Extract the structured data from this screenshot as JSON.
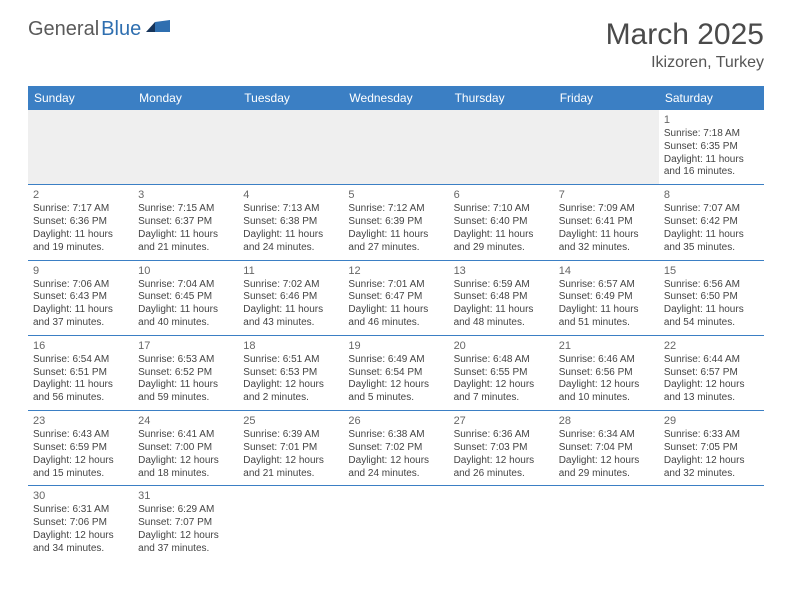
{
  "logo": {
    "part1": "General",
    "part2": "Blue"
  },
  "title": "March 2025",
  "location": "Ikizoren, Turkey",
  "colors": {
    "header_bg": "#3b7fc4",
    "header_text": "#ffffff",
    "border": "#3b7fc4",
    "daynum": "#666666",
    "body_text": "#444444",
    "blank_bg": "#efefef",
    "logo_gray": "#5a5a5a",
    "logo_blue": "#2f6fb0"
  },
  "weekdays": [
    "Sunday",
    "Monday",
    "Tuesday",
    "Wednesday",
    "Thursday",
    "Friday",
    "Saturday"
  ],
  "weeks": [
    [
      null,
      null,
      null,
      null,
      null,
      null,
      {
        "n": "1",
        "sr": "Sunrise: 7:18 AM",
        "ss": "Sunset: 6:35 PM",
        "dl1": "Daylight: 11 hours",
        "dl2": "and 16 minutes."
      }
    ],
    [
      {
        "n": "2",
        "sr": "Sunrise: 7:17 AM",
        "ss": "Sunset: 6:36 PM",
        "dl1": "Daylight: 11 hours",
        "dl2": "and 19 minutes."
      },
      {
        "n": "3",
        "sr": "Sunrise: 7:15 AM",
        "ss": "Sunset: 6:37 PM",
        "dl1": "Daylight: 11 hours",
        "dl2": "and 21 minutes."
      },
      {
        "n": "4",
        "sr": "Sunrise: 7:13 AM",
        "ss": "Sunset: 6:38 PM",
        "dl1": "Daylight: 11 hours",
        "dl2": "and 24 minutes."
      },
      {
        "n": "5",
        "sr": "Sunrise: 7:12 AM",
        "ss": "Sunset: 6:39 PM",
        "dl1": "Daylight: 11 hours",
        "dl2": "and 27 minutes."
      },
      {
        "n": "6",
        "sr": "Sunrise: 7:10 AM",
        "ss": "Sunset: 6:40 PM",
        "dl1": "Daylight: 11 hours",
        "dl2": "and 29 minutes."
      },
      {
        "n": "7",
        "sr": "Sunrise: 7:09 AM",
        "ss": "Sunset: 6:41 PM",
        "dl1": "Daylight: 11 hours",
        "dl2": "and 32 minutes."
      },
      {
        "n": "8",
        "sr": "Sunrise: 7:07 AM",
        "ss": "Sunset: 6:42 PM",
        "dl1": "Daylight: 11 hours",
        "dl2": "and 35 minutes."
      }
    ],
    [
      {
        "n": "9",
        "sr": "Sunrise: 7:06 AM",
        "ss": "Sunset: 6:43 PM",
        "dl1": "Daylight: 11 hours",
        "dl2": "and 37 minutes."
      },
      {
        "n": "10",
        "sr": "Sunrise: 7:04 AM",
        "ss": "Sunset: 6:45 PM",
        "dl1": "Daylight: 11 hours",
        "dl2": "and 40 minutes."
      },
      {
        "n": "11",
        "sr": "Sunrise: 7:02 AM",
        "ss": "Sunset: 6:46 PM",
        "dl1": "Daylight: 11 hours",
        "dl2": "and 43 minutes."
      },
      {
        "n": "12",
        "sr": "Sunrise: 7:01 AM",
        "ss": "Sunset: 6:47 PM",
        "dl1": "Daylight: 11 hours",
        "dl2": "and 46 minutes."
      },
      {
        "n": "13",
        "sr": "Sunrise: 6:59 AM",
        "ss": "Sunset: 6:48 PM",
        "dl1": "Daylight: 11 hours",
        "dl2": "and 48 minutes."
      },
      {
        "n": "14",
        "sr": "Sunrise: 6:57 AM",
        "ss": "Sunset: 6:49 PM",
        "dl1": "Daylight: 11 hours",
        "dl2": "and 51 minutes."
      },
      {
        "n": "15",
        "sr": "Sunrise: 6:56 AM",
        "ss": "Sunset: 6:50 PM",
        "dl1": "Daylight: 11 hours",
        "dl2": "and 54 minutes."
      }
    ],
    [
      {
        "n": "16",
        "sr": "Sunrise: 6:54 AM",
        "ss": "Sunset: 6:51 PM",
        "dl1": "Daylight: 11 hours",
        "dl2": "and 56 minutes."
      },
      {
        "n": "17",
        "sr": "Sunrise: 6:53 AM",
        "ss": "Sunset: 6:52 PM",
        "dl1": "Daylight: 11 hours",
        "dl2": "and 59 minutes."
      },
      {
        "n": "18",
        "sr": "Sunrise: 6:51 AM",
        "ss": "Sunset: 6:53 PM",
        "dl1": "Daylight: 12 hours",
        "dl2": "and 2 minutes."
      },
      {
        "n": "19",
        "sr": "Sunrise: 6:49 AM",
        "ss": "Sunset: 6:54 PM",
        "dl1": "Daylight: 12 hours",
        "dl2": "and 5 minutes."
      },
      {
        "n": "20",
        "sr": "Sunrise: 6:48 AM",
        "ss": "Sunset: 6:55 PM",
        "dl1": "Daylight: 12 hours",
        "dl2": "and 7 minutes."
      },
      {
        "n": "21",
        "sr": "Sunrise: 6:46 AM",
        "ss": "Sunset: 6:56 PM",
        "dl1": "Daylight: 12 hours",
        "dl2": "and 10 minutes."
      },
      {
        "n": "22",
        "sr": "Sunrise: 6:44 AM",
        "ss": "Sunset: 6:57 PM",
        "dl1": "Daylight: 12 hours",
        "dl2": "and 13 minutes."
      }
    ],
    [
      {
        "n": "23",
        "sr": "Sunrise: 6:43 AM",
        "ss": "Sunset: 6:59 PM",
        "dl1": "Daylight: 12 hours",
        "dl2": "and 15 minutes."
      },
      {
        "n": "24",
        "sr": "Sunrise: 6:41 AM",
        "ss": "Sunset: 7:00 PM",
        "dl1": "Daylight: 12 hours",
        "dl2": "and 18 minutes."
      },
      {
        "n": "25",
        "sr": "Sunrise: 6:39 AM",
        "ss": "Sunset: 7:01 PM",
        "dl1": "Daylight: 12 hours",
        "dl2": "and 21 minutes."
      },
      {
        "n": "26",
        "sr": "Sunrise: 6:38 AM",
        "ss": "Sunset: 7:02 PM",
        "dl1": "Daylight: 12 hours",
        "dl2": "and 24 minutes."
      },
      {
        "n": "27",
        "sr": "Sunrise: 6:36 AM",
        "ss": "Sunset: 7:03 PM",
        "dl1": "Daylight: 12 hours",
        "dl2": "and 26 minutes."
      },
      {
        "n": "28",
        "sr": "Sunrise: 6:34 AM",
        "ss": "Sunset: 7:04 PM",
        "dl1": "Daylight: 12 hours",
        "dl2": "and 29 minutes."
      },
      {
        "n": "29",
        "sr": "Sunrise: 6:33 AM",
        "ss": "Sunset: 7:05 PM",
        "dl1": "Daylight: 12 hours",
        "dl2": "and 32 minutes."
      }
    ],
    [
      {
        "n": "30",
        "sr": "Sunrise: 6:31 AM",
        "ss": "Sunset: 7:06 PM",
        "dl1": "Daylight: 12 hours",
        "dl2": "and 34 minutes."
      },
      {
        "n": "31",
        "sr": "Sunrise: 6:29 AM",
        "ss": "Sunset: 7:07 PM",
        "dl1": "Daylight: 12 hours",
        "dl2": "and 37 minutes."
      },
      null,
      null,
      null,
      null,
      null
    ]
  ]
}
